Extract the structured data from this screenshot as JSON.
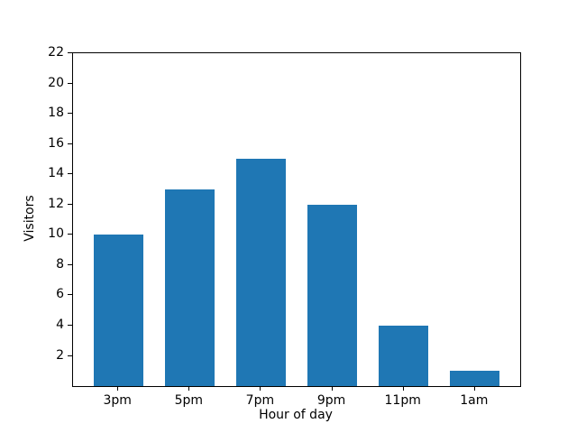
{
  "chart_data": {
    "type": "bar",
    "title": "",
    "xlabel": "Hour of day",
    "ylabel": "Visitors",
    "categories": [
      "3pm",
      "5pm",
      "7pm",
      "9pm",
      "11pm",
      "1am"
    ],
    "values": [
      10,
      13,
      15,
      12,
      4,
      1
    ],
    "ylim": [
      0,
      22
    ],
    "yticks": [
      2,
      4,
      6,
      8,
      10,
      12,
      14,
      16,
      18,
      20,
      22
    ],
    "bar_color": "#1f77b4",
    "spine_color": "#000000",
    "grid": false,
    "legend": "none",
    "bar_width_fraction": 0.7
  }
}
